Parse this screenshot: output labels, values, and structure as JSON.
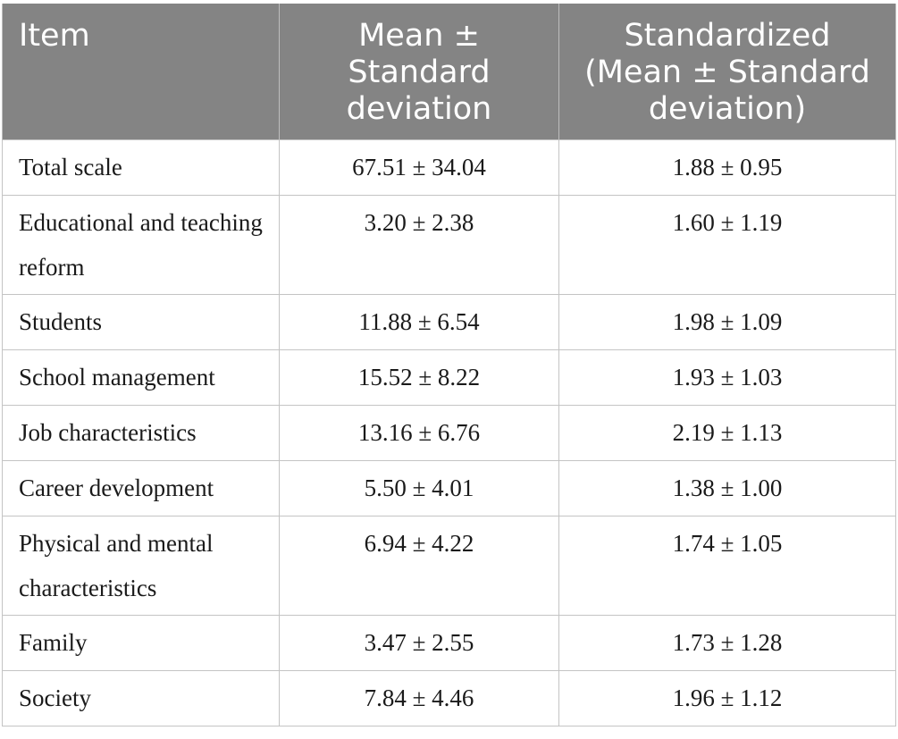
{
  "table": {
    "headers": {
      "item": [
        "Item"
      ],
      "mean_sd": [
        "Mean ±",
        "Standard",
        "deviation"
      ],
      "standardized": [
        "Standardized",
        "(Mean ± Standard",
        "deviation)"
      ]
    },
    "rows": [
      {
        "item": "Total scale",
        "mean_sd": "67.51 ± 34.04",
        "standardized": "1.88 ± 0.95"
      },
      {
        "item": "Educational and teaching reform",
        "mean_sd": "3.20 ± 2.38",
        "standardized": "1.60 ± 1.19"
      },
      {
        "item": "Students",
        "mean_sd": "11.88 ± 6.54",
        "standardized": "1.98 ± 1.09"
      },
      {
        "item": "School management",
        "mean_sd": "15.52 ± 8.22",
        "standardized": "1.93 ± 1.03"
      },
      {
        "item": "Job characteristics",
        "mean_sd": "13.16 ± 6.76",
        "standardized": "2.19 ± 1.13"
      },
      {
        "item": "Career development",
        "mean_sd": "5.50 ± 4.01",
        "standardized": "1.38 ± 1.00"
      },
      {
        "item": "Physical and mental characteristics",
        "mean_sd": "6.94 ± 4.22",
        "standardized": "1.74 ± 1.05"
      },
      {
        "item": "Family",
        "mean_sd": "3.47 ± 2.55",
        "standardized": "1.73 ± 1.28"
      },
      {
        "item": "Society",
        "mean_sd": "7.84 ± 4.46",
        "standardized": "1.96 ± 1.12"
      }
    ]
  },
  "colors": {
    "header_background": "#848484",
    "header_text": "#ffffff",
    "grid_line": "#c4c4c4",
    "body_text": "#1a1a1a"
  }
}
